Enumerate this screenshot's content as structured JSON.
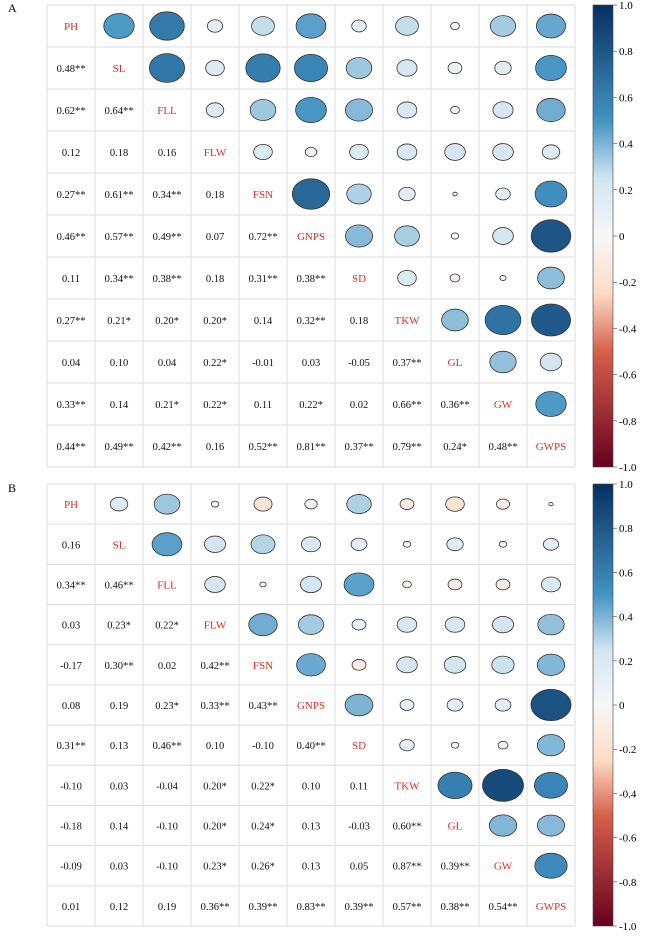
{
  "colors": {
    "neg_strong": "#67001F",
    "neg_mid": "#D6604D",
    "neg_light": "#FDDBC7",
    "zero": "#F7F7F7",
    "pos_light": "#D1E5F0",
    "pos_mid": "#4393C3",
    "pos_strong": "#053061",
    "diag_text": "#E8291C",
    "cell_text": "#111111",
    "grid": "#DDDDDD"
  },
  "chart_data": [
    {
      "type": "heatmap",
      "panel_label": "A",
      "variables": [
        "PH",
        "SL",
        "FLL",
        "FLW",
        "FSN",
        "GNPS",
        "SD",
        "TKW",
        "GL",
        "GW",
        "GWPS"
      ],
      "legend_ticks": [
        "1.0",
        "0.8",
        "0.6",
        "0.4",
        "0.2",
        "0",
        "-0.2",
        "-0.4",
        "-0.6",
        "-0.8",
        "-1.0"
      ],
      "legend_range": [
        -1,
        1
      ],
      "lower_labels": [
        [
          "0.48**"
        ],
        [
          "0.62**",
          "0.64**"
        ],
        [
          "0.12",
          "0.18",
          "0.16"
        ],
        [
          "0.27**",
          "0.61**",
          "0.34**",
          "0.18"
        ],
        [
          "0.46**",
          "0.57**",
          "0.49**",
          "0.07",
          "0.72**"
        ],
        [
          "0.11",
          "0.34**",
          "0.38**",
          "0.18",
          "0.31**",
          "0.38**"
        ],
        [
          "0.27**",
          "0.21*",
          "0.20*",
          "0.20*",
          "0.14",
          "0.32**",
          "0.18"
        ],
        [
          "0.04",
          "0.10",
          "0.04",
          "0.22*",
          "-0.01",
          "0.03",
          "-0.05",
          "0.37**"
        ],
        [
          "0.33**",
          "0.14",
          "0.21*",
          "0.22*",
          "0.11",
          "0.22*",
          "0.02",
          "0.66**",
          "0.36**"
        ],
        [
          "0.44**",
          "0.49**",
          "0.42**",
          "0.16",
          "0.52**",
          "0.81**",
          "0.37**",
          "0.79**",
          "0.24*",
          "0.48**"
        ]
      ],
      "matrix": [
        [
          1,
          0.48,
          0.62,
          0.12,
          0.27,
          0.46,
          0.11,
          0.27,
          0.04,
          0.33,
          0.44
        ],
        [
          0.48,
          1,
          0.64,
          0.18,
          0.61,
          0.57,
          0.34,
          0.21,
          0.1,
          0.14,
          0.49
        ],
        [
          0.62,
          0.64,
          1,
          0.16,
          0.34,
          0.49,
          0.38,
          0.2,
          0.04,
          0.21,
          0.42
        ],
        [
          0.12,
          0.18,
          0.16,
          1,
          0.18,
          0.07,
          0.18,
          0.2,
          0.22,
          0.22,
          0.16
        ],
        [
          0.27,
          0.61,
          0.34,
          0.18,
          1,
          0.72,
          0.31,
          0.14,
          -0.01,
          0.11,
          0.52
        ],
        [
          0.46,
          0.57,
          0.49,
          0.07,
          0.72,
          1,
          0.38,
          0.32,
          0.03,
          0.22,
          0.81
        ],
        [
          0.11,
          0.34,
          0.38,
          0.18,
          0.31,
          0.38,
          1,
          0.18,
          -0.05,
          0.02,
          0.37
        ],
        [
          0.27,
          0.21,
          0.2,
          0.2,
          0.14,
          0.32,
          0.18,
          1,
          0.37,
          0.66,
          0.79
        ],
        [
          0.04,
          0.1,
          0.04,
          0.22,
          -0.01,
          0.03,
          -0.05,
          0.37,
          1,
          0.36,
          0.24
        ],
        [
          0.33,
          0.14,
          0.21,
          0.22,
          0.11,
          0.22,
          0.02,
          0.66,
          0.36,
          1,
          0.48
        ],
        [
          0.44,
          0.49,
          0.42,
          0.16,
          0.52,
          0.81,
          0.37,
          0.79,
          0.24,
          0.48,
          1
        ]
      ]
    },
    {
      "type": "heatmap",
      "panel_label": "B",
      "variables": [
        "PH",
        "SL",
        "FLL",
        "FLW",
        "FSN",
        "GNPS",
        "SD",
        "TKW",
        "GL",
        "GW",
        "GWPS"
      ],
      "legend_ticks": [
        "1.0",
        "0.8",
        "0.6",
        "0.4",
        "0.2",
        "0",
        "-0.2",
        "-0.4",
        "-0.6",
        "-0.8",
        "-1.0"
      ],
      "legend_range": [
        -1,
        1
      ],
      "lower_labels": [
        [
          "0.16"
        ],
        [
          "0.34**",
          "0.46**"
        ],
        [
          "0.03",
          "0.23*",
          "0.22*"
        ],
        [
          "-0.17",
          "0.30**",
          "0.02",
          "0.42**"
        ],
        [
          "0.08",
          "0.19",
          "0.23*",
          "0.33**",
          "0.43**"
        ],
        [
          "0.31**",
          "0.13",
          "0.46**",
          "0.10",
          "-0.10",
          "0.40**"
        ],
        [
          "-0.10",
          "0.03",
          "-0.04",
          "0.20*",
          "0.22*",
          "0.10",
          "0.11"
        ],
        [
          "-0.18",
          "0.14",
          "-0.10",
          "0.20*",
          "0.24*",
          "0.13",
          "-0.03",
          "0.60**"
        ],
        [
          "-0.09",
          "0.03",
          "-0.10",
          "0.23*",
          "0.26*",
          "0.13",
          "0.05",
          "0.87**",
          "0.39**"
        ],
        [
          "0.01",
          "0.12",
          "0.19",
          "0.36**",
          "0.39**",
          "0.83**",
          "0.39**",
          "0.57**",
          "0.38**",
          "0.54**"
        ]
      ],
      "matrix": [
        [
          1,
          0.16,
          0.34,
          0.03,
          -0.17,
          0.08,
          0.31,
          -0.1,
          -0.18,
          -0.09,
          0.01
        ],
        [
          0.16,
          1,
          0.46,
          0.23,
          0.3,
          0.19,
          0.13,
          0.03,
          0.14,
          0.03,
          0.12
        ],
        [
          0.34,
          0.46,
          1,
          0.22,
          0.02,
          0.23,
          0.46,
          -0.04,
          -0.1,
          -0.1,
          0.19
        ],
        [
          0.03,
          0.23,
          0.22,
          1,
          0.42,
          0.33,
          0.1,
          0.2,
          0.2,
          0.23,
          0.36
        ],
        [
          -0.17,
          0.3,
          0.02,
          0.42,
          1,
          0.43,
          -0.1,
          0.22,
          0.24,
          0.26,
          0.39
        ],
        [
          0.08,
          0.19,
          0.23,
          0.33,
          0.43,
          1,
          0.4,
          0.1,
          0.13,
          0.13,
          0.83
        ],
        [
          0.31,
          0.13,
          0.46,
          0.1,
          -0.1,
          0.4,
          1,
          0.11,
          -0.03,
          0.05,
          0.39
        ],
        [
          -0.1,
          0.03,
          -0.04,
          0.2,
          0.22,
          0.1,
          0.11,
          1,
          0.6,
          0.87,
          0.57
        ],
        [
          -0.18,
          0.14,
          -0.1,
          0.2,
          0.24,
          0.13,
          -0.03,
          0.6,
          1,
          0.39,
          0.38
        ],
        [
          -0.09,
          0.03,
          -0.1,
          0.23,
          0.26,
          0.13,
          0.05,
          0.87,
          0.39,
          1,
          0.54
        ],
        [
          0.01,
          0.12,
          0.19,
          0.36,
          0.39,
          0.83,
          0.39,
          0.57,
          0.38,
          0.54,
          1
        ]
      ]
    }
  ]
}
